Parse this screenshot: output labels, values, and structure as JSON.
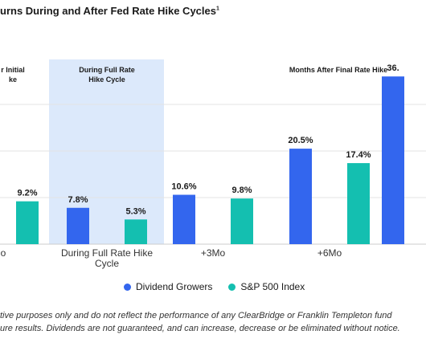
{
  "title": "urns During and After Fed Rate Hike Cycles",
  "title_sup": "1",
  "chart_data": {
    "type": "bar",
    "categories": [
      "o",
      "During Full Rate Hike Cycle",
      "+3Mo",
      "+6Mo",
      ""
    ],
    "series": [
      {
        "name": "Dividend Growers",
        "values": [
          null,
          7.8,
          10.6,
          20.5,
          36.0
        ],
        "labels": [
          "",
          "7.8%",
          "10.6%",
          "20.5%",
          "36."
        ]
      },
      {
        "name": "S&P 500 Index",
        "values": [
          9.2,
          5.3,
          9.8,
          17.4,
          null
        ],
        "labels": [
          "9.2%",
          "5.3%",
          "9.8%",
          "17.4%",
          ""
        ]
      }
    ],
    "gridlines": [
      10,
      20,
      30
    ],
    "ylim": [
      0,
      40
    ],
    "colors": {
      "dividend": "#3366ee",
      "sp500": "#14bfb0",
      "highlight": "#dce9fb",
      "grid": "#e3e3e3"
    },
    "section_labels": [
      {
        "lines": [
          "r Initial",
          "ke"
        ]
      },
      {
        "lines": [
          "During Full Rate",
          "Hike Cycle"
        ]
      },
      {
        "lines": [
          "Months After Final Rate Hike"
        ]
      }
    ]
  },
  "legend": {
    "dividend": "Dividend Growers",
    "sp500": "S&P 500 Index"
  },
  "footnote": {
    "line1": "tive purposes only and do not reflect the performance of any ClearBridge or Franklin Templeton fund",
    "line2": "ure results. Dividends are not guaranteed, and can increase, decrease or be eliminated without notice."
  }
}
